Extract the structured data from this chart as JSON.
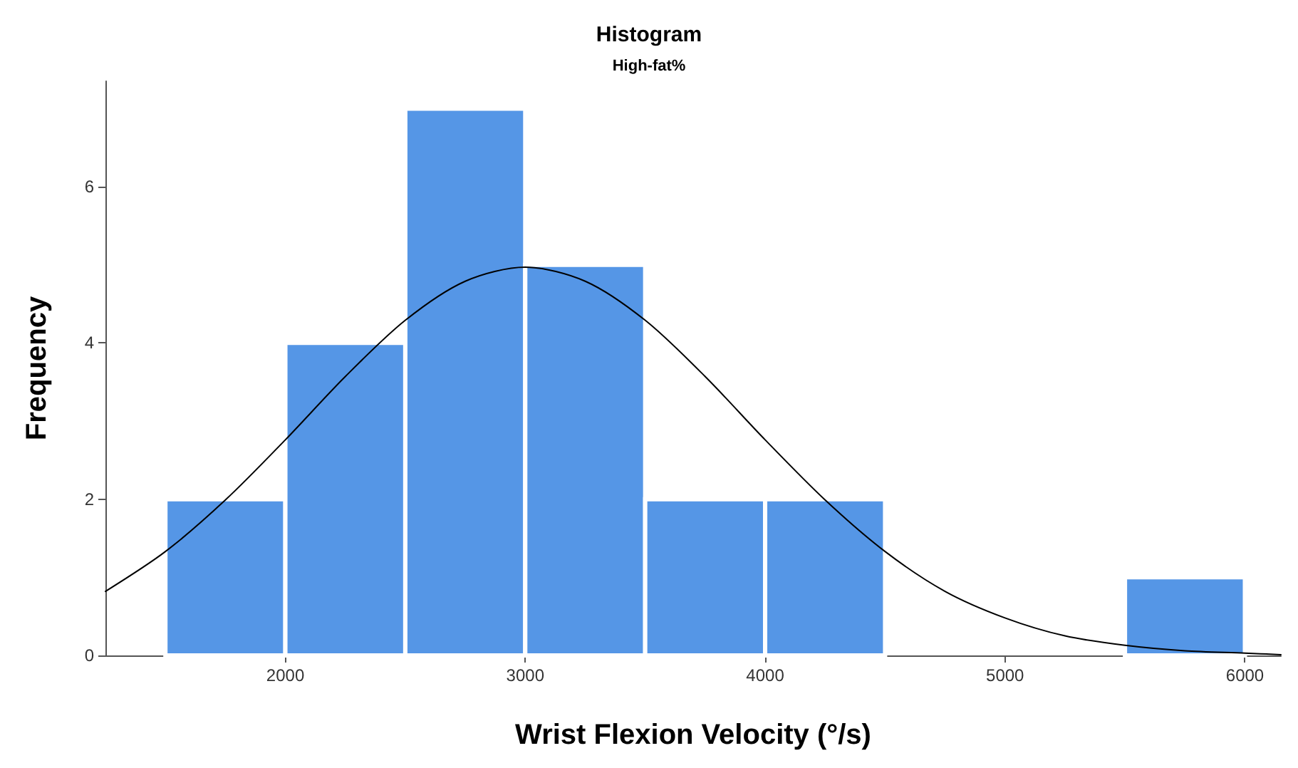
{
  "chart_data": {
    "type": "histogram",
    "title": "Histogram",
    "subtitle": "High-fat%",
    "xlabel": "Wrist Flexion Velocity (°/s)",
    "ylabel": "Frequency",
    "bins": [
      1500,
      2000,
      2500,
      3000,
      3500,
      4000,
      4500,
      5000,
      5500,
      6000
    ],
    "values": [
      2,
      4,
      7,
      5,
      2,
      2,
      0,
      0,
      1
    ],
    "color": "#5596e6",
    "xlim": [
      1250,
      6150
    ],
    "xticks": [
      2000,
      3000,
      4000,
      5000,
      6000
    ],
    "ylim": [
      0,
      7.35
    ],
    "yticks": [
      0,
      2,
      4,
      6
    ],
    "grid": false,
    "marker": "none",
    "series": [
      {
        "type": "line",
        "color": "#000000",
        "x": [
          1250,
          1500,
          1750,
          2000,
          2250,
          2500,
          2750,
          3000,
          3250,
          3500,
          3750,
          4000,
          4250,
          4500,
          4750,
          5000,
          5250,
          5500,
          5750,
          6000,
          6150
        ],
        "values": [
          0.82,
          1.33,
          1.99,
          2.76,
          3.57,
          4.29,
          4.79,
          4.97,
          4.79,
          4.29,
          3.57,
          2.76,
          1.99,
          1.33,
          0.82,
          0.48,
          0.25,
          0.13,
          0.06,
          0.03,
          0.01
        ]
      }
    ]
  }
}
